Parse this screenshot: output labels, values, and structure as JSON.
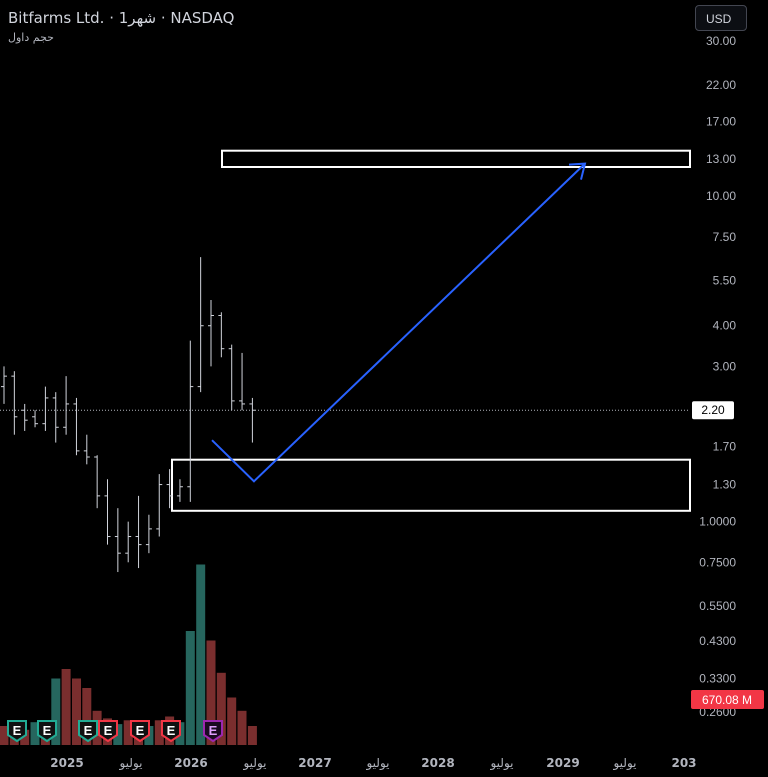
{
  "header": {
    "title": "Bitfarms Ltd. · 1شهر · NASDAQ",
    "subtitle": "حجم داول"
  },
  "currency_button": {
    "label": "USD"
  },
  "chart_data": {
    "type": "candlestick",
    "scale": "log",
    "y_ticks": [
      "30.00",
      "22.00",
      "17.00",
      "13.00",
      "10.00",
      "7.50",
      "5.50",
      "4.00",
      "3.00",
      "1.70",
      "1.30",
      "1.0000",
      "0.7500",
      "0.5500",
      "0.4300",
      "0.3300",
      "0.2600"
    ],
    "y_tick_values": [
      30,
      22,
      17,
      13,
      10,
      7.5,
      5.5,
      4,
      3,
      1.7,
      1.3,
      1.0,
      0.75,
      0.55,
      0.43,
      0.33,
      0.26
    ],
    "ylim": [
      0.24,
      36
    ],
    "x_ticks": [
      "2025",
      "يوليو",
      "2026",
      "يوليو",
      "2027",
      "يوليو",
      "2028",
      "يوليو",
      "2029",
      "يوليو",
      "203"
    ],
    "current_price": {
      "label": "2.20",
      "value": 2.2
    },
    "volume_label": "670.08 M",
    "bars": [
      {
        "o": 2.6,
        "h": 3.0,
        "l": 2.3,
        "c": 2.8
      },
      {
        "o": 2.8,
        "h": 2.9,
        "l": 1.85,
        "c": 2.1
      },
      {
        "o": 2.2,
        "h": 2.3,
        "l": 1.9,
        "c": 2.05
      },
      {
        "o": 2.1,
        "h": 2.2,
        "l": 1.95,
        "c": 2.0
      },
      {
        "o": 2.0,
        "h": 2.6,
        "l": 1.9,
        "c": 2.4
      },
      {
        "o": 2.4,
        "h": 2.5,
        "l": 1.75,
        "c": 1.95
      },
      {
        "o": 1.95,
        "h": 2.8,
        "l": 1.85,
        "c": 2.3
      },
      {
        "o": 2.3,
        "h": 2.4,
        "l": 1.6,
        "c": 1.65
      },
      {
        "o": 1.65,
        "h": 1.85,
        "l": 1.5,
        "c": 1.58
      },
      {
        "o": 1.58,
        "h": 1.6,
        "l": 1.1,
        "c": 1.2
      },
      {
        "o": 1.2,
        "h": 1.35,
        "l": 0.85,
        "c": 0.9
      },
      {
        "o": 0.9,
        "h": 1.1,
        "l": 0.7,
        "c": 0.8
      },
      {
        "o": 0.8,
        "h": 1.0,
        "l": 0.75,
        "c": 0.9
      },
      {
        "o": 0.9,
        "h": 1.2,
        "l": 0.72,
        "c": 0.85
      },
      {
        "o": 0.85,
        "h": 1.05,
        "l": 0.8,
        "c": 0.95
      },
      {
        "o": 0.95,
        "h": 1.4,
        "l": 0.9,
        "c": 1.3
      },
      {
        "o": 1.3,
        "h": 1.45,
        "l": 1.1,
        "c": 1.2
      },
      {
        "o": 1.2,
        "h": 1.35,
        "l": 1.15,
        "c": 1.28
      },
      {
        "o": 1.28,
        "h": 3.6,
        "l": 1.15,
        "c": 2.6
      },
      {
        "o": 2.6,
        "h": 6.5,
        "l": 2.5,
        "c": 4.0
      },
      {
        "o": 4.0,
        "h": 4.8,
        "l": 3.0,
        "c": 4.3
      },
      {
        "o": 4.3,
        "h": 4.4,
        "l": 3.2,
        "c": 3.4
      },
      {
        "o": 3.4,
        "h": 3.5,
        "l": 2.2,
        "c": 2.35
      },
      {
        "o": 2.35,
        "h": 3.3,
        "l": 2.2,
        "c": 2.3
      },
      {
        "o": 2.3,
        "h": 2.4,
        "l": 1.75,
        "c": 2.2
      }
    ],
    "volume": [
      {
        "v": 0.1,
        "dir": "down"
      },
      {
        "v": 0.09,
        "dir": "down"
      },
      {
        "v": 0.08,
        "dir": "down"
      },
      {
        "v": 0.12,
        "dir": "up"
      },
      {
        "v": 0.11,
        "dir": "down"
      },
      {
        "v": 0.35,
        "dir": "up"
      },
      {
        "v": 0.4,
        "dir": "down"
      },
      {
        "v": 0.35,
        "dir": "down"
      },
      {
        "v": 0.3,
        "dir": "down"
      },
      {
        "v": 0.18,
        "dir": "down"
      },
      {
        "v": 0.14,
        "dir": "down"
      },
      {
        "v": 0.11,
        "dir": "up"
      },
      {
        "v": 0.13,
        "dir": "down"
      },
      {
        "v": 0.12,
        "dir": "down"
      },
      {
        "v": 0.1,
        "dir": "up"
      },
      {
        "v": 0.13,
        "dir": "down"
      },
      {
        "v": 0.15,
        "dir": "down"
      },
      {
        "v": 0.12,
        "dir": "up"
      },
      {
        "v": 0.6,
        "dir": "up"
      },
      {
        "v": 0.95,
        "dir": "up"
      },
      {
        "v": 0.55,
        "dir": "down"
      },
      {
        "v": 0.38,
        "dir": "down"
      },
      {
        "v": 0.25,
        "dir": "down"
      },
      {
        "v": 0.18,
        "dir": "down"
      },
      {
        "v": 0.1,
        "dir": "down"
      }
    ],
    "earnings_markers": [
      {
        "label": "E",
        "style": "up"
      },
      {
        "label": "E",
        "style": "up"
      },
      {
        "label": "E",
        "style": "up"
      },
      {
        "label": "E",
        "style": "down"
      },
      {
        "label": "E",
        "style": "down"
      },
      {
        "label": "E",
        "style": "down"
      },
      {
        "label": "E",
        "style": "future"
      }
    ],
    "zones": [
      {
        "from": 13.8,
        "to": 12.3
      },
      {
        "from": 1.55,
        "to": 1.08
      }
    ],
    "projection_path": [
      1.78,
      1.33,
      12.6
    ],
    "colors": {
      "bg": "#000000",
      "bar": "#d1d4dc",
      "vol_up": "#26665e",
      "vol_down": "#7a2e2e",
      "earn_up": "#22ab94",
      "earn_down": "#f23645",
      "earn_future": "#9c27b0",
      "arrow": "#2962ff",
      "zone": "#ffffff",
      "vol_label": "#f23645"
    }
  }
}
